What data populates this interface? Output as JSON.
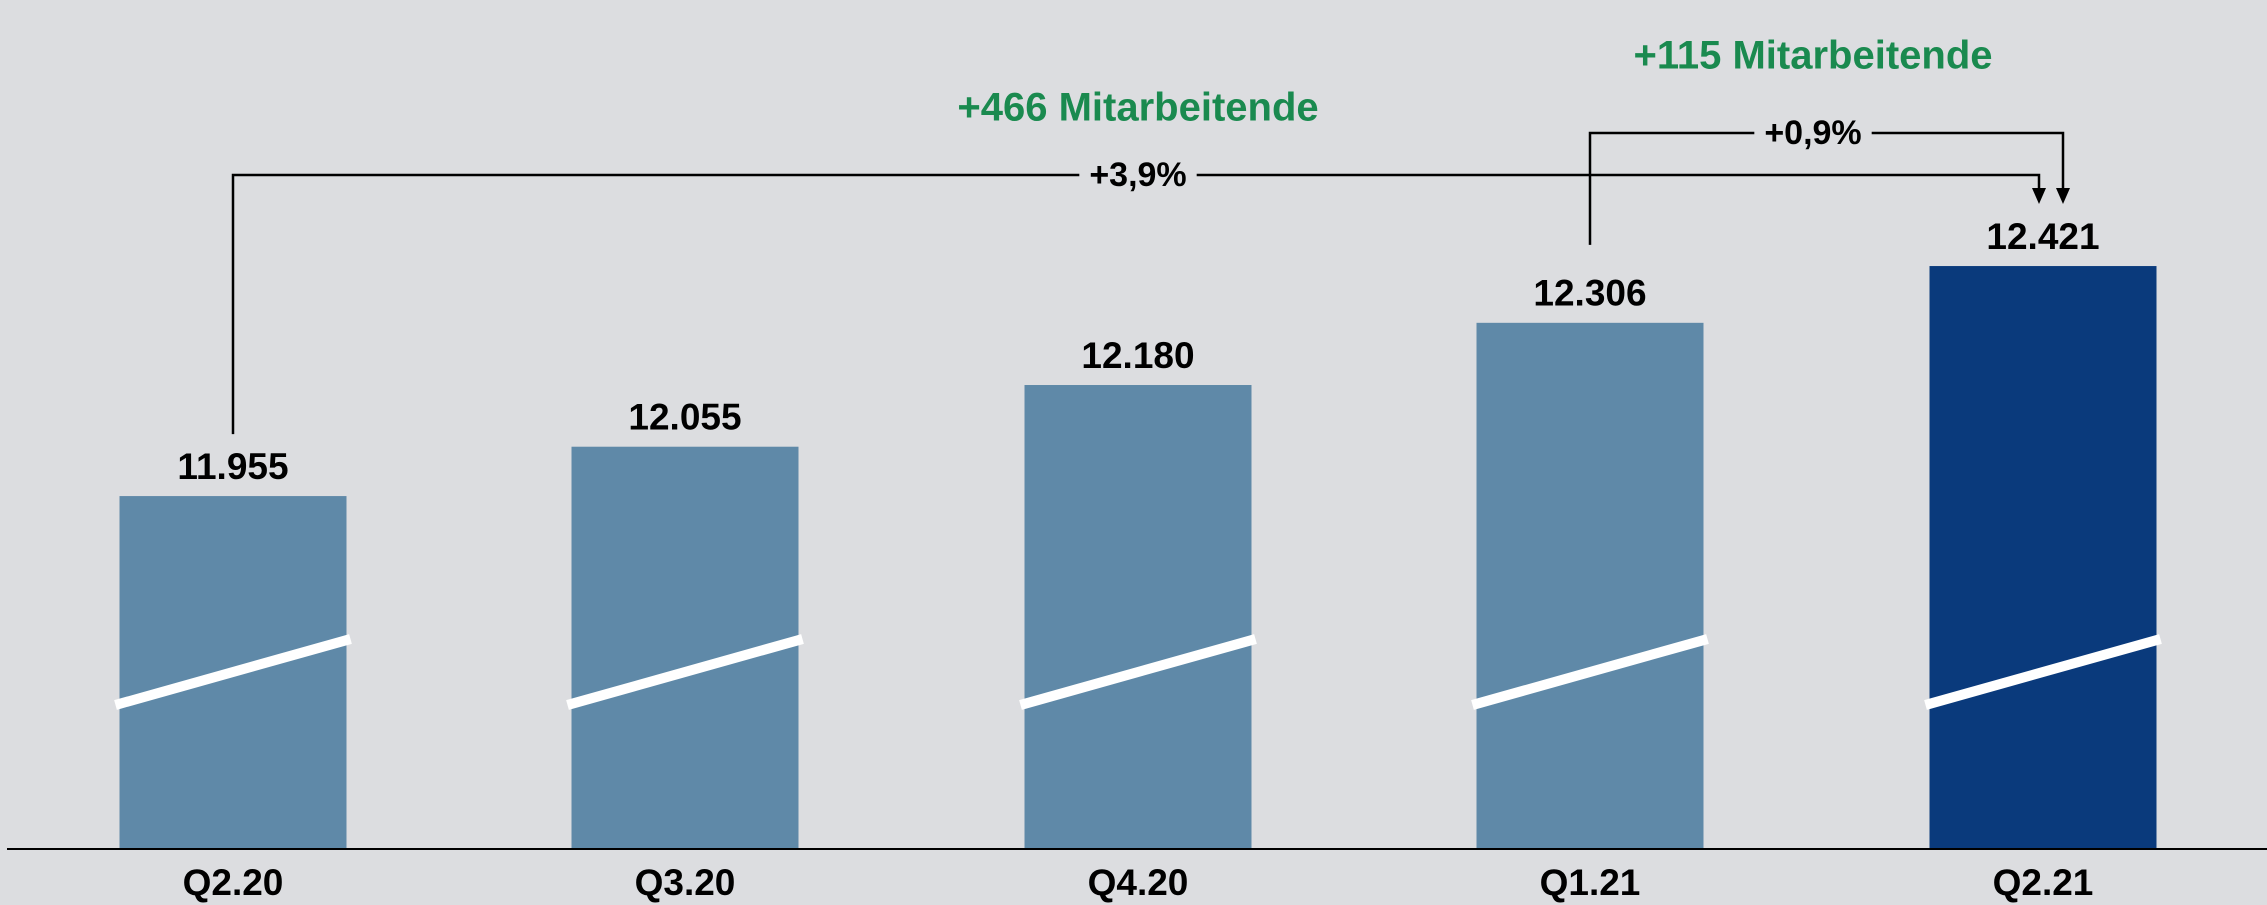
{
  "chart_data": {
    "type": "bar",
    "categories": [
      "Q2.20",
      "Q3.20",
      "Q4.20",
      "Q1.21",
      "Q2.21"
    ],
    "values": [
      11955,
      12055,
      12180,
      12306,
      12421
    ],
    "value_labels": [
      "11.955",
      "12.055",
      "12.180",
      "12.306",
      "12.421"
    ],
    "colors": [
      "#5f89a8",
      "#5f89a8",
      "#5f89a8",
      "#5f89a8",
      "#0a3a7c"
    ],
    "ylim": [
      11240,
      12960
    ],
    "annotations": [
      {
        "change": "+3,9%",
        "text": "+466 Mitarbeitende"
      },
      {
        "change": "+0,9%",
        "text": "+115 Mitarbeitende"
      }
    ]
  }
}
